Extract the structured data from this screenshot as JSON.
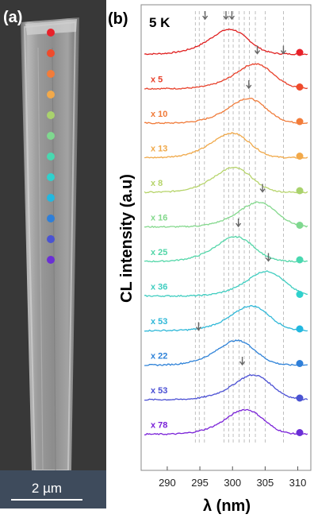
{
  "panel_a": {
    "label": "(a)",
    "scale_bar": "2 µm",
    "dot_colors": [
      "#e8212a",
      "#ef4b2c",
      "#f27c3a",
      "#f2a94a",
      "#a9d26d",
      "#7fd88f",
      "#49d8b0",
      "#2fd1cd",
      "#22b8e0",
      "#2e7fd9",
      "#4a53d2",
      "#6a2fd6"
    ]
  },
  "panel_b": {
    "label": "(b)",
    "temperature": "5 K"
  },
  "chart_data": {
    "type": "line",
    "xlabel": "λ (nm)",
    "ylabel": "CL intensity (a.u)",
    "xlim": [
      286,
      312
    ],
    "xticks": [
      290,
      295,
      300,
      305,
      310
    ],
    "tick_labels": [
      "290",
      "295",
      "300",
      "305",
      "310"
    ],
    "reference_lines_nm": [
      294.3,
      294.9,
      295.7,
      298.7,
      299.4,
      300.1,
      301.0,
      301.8,
      302.6,
      303.5,
      305.0,
      307.8
    ],
    "series": [
      {
        "factor": "",
        "color": "#e02020",
        "peak_nm": 299.9,
        "arrows_nm": [
          295.8,
          299.0,
          299.9
        ]
      },
      {
        "factor": "x 5",
        "color": "#e8402a",
        "peak_nm": 303.8,
        "arrows_nm": [
          303.8,
          307.8
        ]
      },
      {
        "factor": "x 10",
        "color": "#f07a38",
        "peak_nm": 302.7,
        "arrows_nm": [
          302.5
        ]
      },
      {
        "factor": "x 13",
        "color": "#f0a848",
        "peak_nm": 300.2,
        "arrows_nm": []
      },
      {
        "factor": "x 8",
        "color": "#b6d46a",
        "peak_nm": 300.5,
        "arrows_nm": []
      },
      {
        "factor": "x 16",
        "color": "#83d88c",
        "peak_nm": 304.3,
        "arrows_nm": [
          304.6
        ]
      },
      {
        "factor": "x 25",
        "color": "#52d6a8",
        "peak_nm": 300.8,
        "arrows_nm": [
          300.9
        ]
      },
      {
        "factor": "x 36",
        "color": "#3fcdc0",
        "peak_nm": 305.5,
        "arrows_nm": [
          305.5
        ]
      },
      {
        "factor": "x 53",
        "color": "#2fb8d8",
        "peak_nm": 303.2,
        "arrows_nm": []
      },
      {
        "factor": "x 22",
        "color": "#2e82d8",
        "peak_nm": 301.0,
        "arrows_nm": [
          294.8
        ]
      },
      {
        "factor": "x 53",
        "color": "#4a4fd4",
        "peak_nm": 303.5,
        "arrows_nm": [
          301.5
        ]
      },
      {
        "factor": "x 78",
        "color": "#7a22d8",
        "peak_nm": 302.3,
        "arrows_nm": []
      }
    ],
    "dot_colors": [
      "#e8212a",
      "#ef4b2c",
      "#f27c3a",
      "#f2a94a",
      "#a9d26d",
      "#7fd88f",
      "#49d8b0",
      "#2fd1cd",
      "#22b8e0",
      "#2e7fd9",
      "#4a53d2",
      "#6a2fd6"
    ]
  }
}
